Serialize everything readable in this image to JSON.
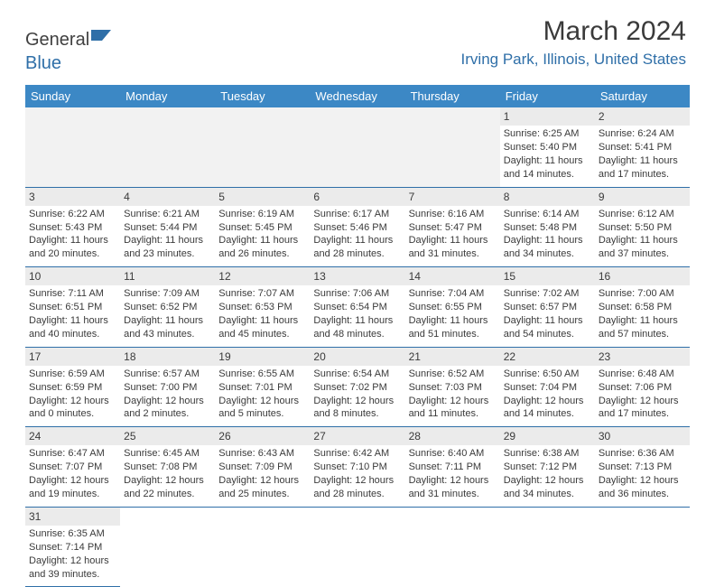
{
  "brand": {
    "part1": "General",
    "part2": "Blue"
  },
  "title": "March 2024",
  "location": "Irving Park, Illinois, United States",
  "colors": {
    "header_bg": "#3c88c5",
    "accent": "#2f6fa8",
    "text": "#3a3a3a",
    "day_bg": "#ebebeb"
  },
  "weekdays": [
    "Sunday",
    "Monday",
    "Tuesday",
    "Wednesday",
    "Thursday",
    "Friday",
    "Saturday"
  ],
  "weeks": [
    [
      null,
      null,
      null,
      null,
      null,
      {
        "n": "1",
        "sr": "Sunrise: 6:25 AM",
        "ss": "Sunset: 5:40 PM",
        "d1": "Daylight: 11 hours",
        "d2": "and 14 minutes."
      },
      {
        "n": "2",
        "sr": "Sunrise: 6:24 AM",
        "ss": "Sunset: 5:41 PM",
        "d1": "Daylight: 11 hours",
        "d2": "and 17 minutes."
      }
    ],
    [
      {
        "n": "3",
        "sr": "Sunrise: 6:22 AM",
        "ss": "Sunset: 5:43 PM",
        "d1": "Daylight: 11 hours",
        "d2": "and 20 minutes."
      },
      {
        "n": "4",
        "sr": "Sunrise: 6:21 AM",
        "ss": "Sunset: 5:44 PM",
        "d1": "Daylight: 11 hours",
        "d2": "and 23 minutes."
      },
      {
        "n": "5",
        "sr": "Sunrise: 6:19 AM",
        "ss": "Sunset: 5:45 PM",
        "d1": "Daylight: 11 hours",
        "d2": "and 26 minutes."
      },
      {
        "n": "6",
        "sr": "Sunrise: 6:17 AM",
        "ss": "Sunset: 5:46 PM",
        "d1": "Daylight: 11 hours",
        "d2": "and 28 minutes."
      },
      {
        "n": "7",
        "sr": "Sunrise: 6:16 AM",
        "ss": "Sunset: 5:47 PM",
        "d1": "Daylight: 11 hours",
        "d2": "and 31 minutes."
      },
      {
        "n": "8",
        "sr": "Sunrise: 6:14 AM",
        "ss": "Sunset: 5:48 PM",
        "d1": "Daylight: 11 hours",
        "d2": "and 34 minutes."
      },
      {
        "n": "9",
        "sr": "Sunrise: 6:12 AM",
        "ss": "Sunset: 5:50 PM",
        "d1": "Daylight: 11 hours",
        "d2": "and 37 minutes."
      }
    ],
    [
      {
        "n": "10",
        "sr": "Sunrise: 7:11 AM",
        "ss": "Sunset: 6:51 PM",
        "d1": "Daylight: 11 hours",
        "d2": "and 40 minutes."
      },
      {
        "n": "11",
        "sr": "Sunrise: 7:09 AM",
        "ss": "Sunset: 6:52 PM",
        "d1": "Daylight: 11 hours",
        "d2": "and 43 minutes."
      },
      {
        "n": "12",
        "sr": "Sunrise: 7:07 AM",
        "ss": "Sunset: 6:53 PM",
        "d1": "Daylight: 11 hours",
        "d2": "and 45 minutes."
      },
      {
        "n": "13",
        "sr": "Sunrise: 7:06 AM",
        "ss": "Sunset: 6:54 PM",
        "d1": "Daylight: 11 hours",
        "d2": "and 48 minutes."
      },
      {
        "n": "14",
        "sr": "Sunrise: 7:04 AM",
        "ss": "Sunset: 6:55 PM",
        "d1": "Daylight: 11 hours",
        "d2": "and 51 minutes."
      },
      {
        "n": "15",
        "sr": "Sunrise: 7:02 AM",
        "ss": "Sunset: 6:57 PM",
        "d1": "Daylight: 11 hours",
        "d2": "and 54 minutes."
      },
      {
        "n": "16",
        "sr": "Sunrise: 7:00 AM",
        "ss": "Sunset: 6:58 PM",
        "d1": "Daylight: 11 hours",
        "d2": "and 57 minutes."
      }
    ],
    [
      {
        "n": "17",
        "sr": "Sunrise: 6:59 AM",
        "ss": "Sunset: 6:59 PM",
        "d1": "Daylight: 12 hours",
        "d2": "and 0 minutes."
      },
      {
        "n": "18",
        "sr": "Sunrise: 6:57 AM",
        "ss": "Sunset: 7:00 PM",
        "d1": "Daylight: 12 hours",
        "d2": "and 2 minutes."
      },
      {
        "n": "19",
        "sr": "Sunrise: 6:55 AM",
        "ss": "Sunset: 7:01 PM",
        "d1": "Daylight: 12 hours",
        "d2": "and 5 minutes."
      },
      {
        "n": "20",
        "sr": "Sunrise: 6:54 AM",
        "ss": "Sunset: 7:02 PM",
        "d1": "Daylight: 12 hours",
        "d2": "and 8 minutes."
      },
      {
        "n": "21",
        "sr": "Sunrise: 6:52 AM",
        "ss": "Sunset: 7:03 PM",
        "d1": "Daylight: 12 hours",
        "d2": "and 11 minutes."
      },
      {
        "n": "22",
        "sr": "Sunrise: 6:50 AM",
        "ss": "Sunset: 7:04 PM",
        "d1": "Daylight: 12 hours",
        "d2": "and 14 minutes."
      },
      {
        "n": "23",
        "sr": "Sunrise: 6:48 AM",
        "ss": "Sunset: 7:06 PM",
        "d1": "Daylight: 12 hours",
        "d2": "and 17 minutes."
      }
    ],
    [
      {
        "n": "24",
        "sr": "Sunrise: 6:47 AM",
        "ss": "Sunset: 7:07 PM",
        "d1": "Daylight: 12 hours",
        "d2": "and 19 minutes."
      },
      {
        "n": "25",
        "sr": "Sunrise: 6:45 AM",
        "ss": "Sunset: 7:08 PM",
        "d1": "Daylight: 12 hours",
        "d2": "and 22 minutes."
      },
      {
        "n": "26",
        "sr": "Sunrise: 6:43 AM",
        "ss": "Sunset: 7:09 PM",
        "d1": "Daylight: 12 hours",
        "d2": "and 25 minutes."
      },
      {
        "n": "27",
        "sr": "Sunrise: 6:42 AM",
        "ss": "Sunset: 7:10 PM",
        "d1": "Daylight: 12 hours",
        "d2": "and 28 minutes."
      },
      {
        "n": "28",
        "sr": "Sunrise: 6:40 AM",
        "ss": "Sunset: 7:11 PM",
        "d1": "Daylight: 12 hours",
        "d2": "and 31 minutes."
      },
      {
        "n": "29",
        "sr": "Sunrise: 6:38 AM",
        "ss": "Sunset: 7:12 PM",
        "d1": "Daylight: 12 hours",
        "d2": "and 34 minutes."
      },
      {
        "n": "30",
        "sr": "Sunrise: 6:36 AM",
        "ss": "Sunset: 7:13 PM",
        "d1": "Daylight: 12 hours",
        "d2": "and 36 minutes."
      }
    ],
    [
      {
        "n": "31",
        "sr": "Sunrise: 6:35 AM",
        "ss": "Sunset: 7:14 PM",
        "d1": "Daylight: 12 hours",
        "d2": "and 39 minutes."
      },
      null,
      null,
      null,
      null,
      null,
      null
    ]
  ]
}
